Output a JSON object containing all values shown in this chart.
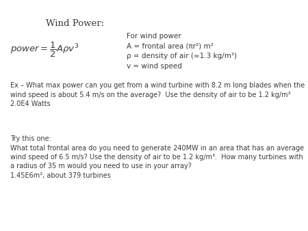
{
  "title": "Wind Power:",
  "bg_color": "#ffffff",
  "text_color": "#3a3a3a",
  "definition_lines": [
    "For wind power",
    "A = frontal area (πr²) m²",
    "ρ = density of air (≈1.3 kg/m³)",
    "v = wind speed"
  ],
  "ex_line1": "Ex – What max power can you get from a wind turbine with 8.2 m long blades when the",
  "ex_line2": "wind speed is about 5.4 m/s on the average?  Use the density of air to be 1.2 kg/m³",
  "ex_line3": "2.0E4 Watts",
  "try_line1": "Try this one:",
  "try_line2": "What total frontal area do you need to generate 240MW in an area that has an average",
  "try_line3": "wind speed of 6.5 m/s? Use the density of air to be 1.2 kg/m³.  How many turbines with",
  "try_line4": "a radius of 35 m would you need to use in your array?",
  "try_line5": "1.45E6m², about 379 turbines",
  "title_fontsize": 9.5,
  "formula_fontsize": 9.5,
  "def_fontsize": 7.5,
  "body_fontsize": 7.0
}
